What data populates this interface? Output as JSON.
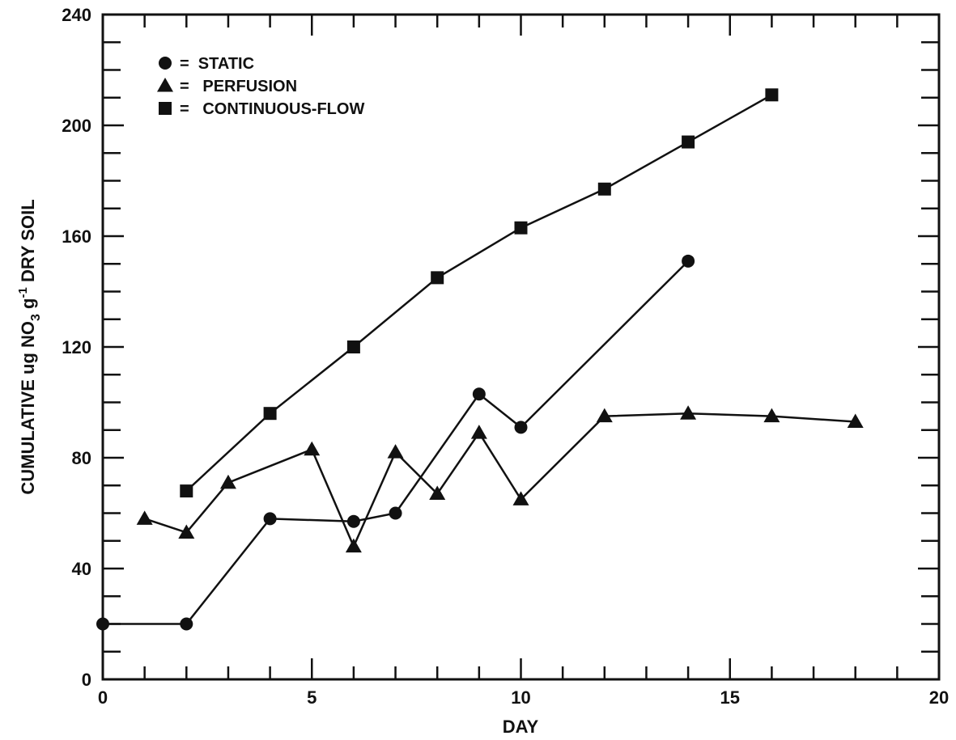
{
  "chart_data": {
    "type": "line",
    "title": "",
    "xlabel": "DAY",
    "ylabel": {
      "prefix": "CUMULATIVE ug NO",
      "sub": "3",
      "mid": " g",
      "sup": "-1",
      "suffix": " DRY SOIL"
    },
    "xlim": [
      0,
      20
    ],
    "ylim": [
      0,
      240
    ],
    "x_ticks": [
      0,
      5,
      10,
      15,
      20
    ],
    "y_ticks": [
      0,
      40,
      80,
      120,
      160,
      200,
      240
    ],
    "x_tick_labels": [
      "0",
      "5",
      "10",
      "15",
      "20"
    ],
    "y_tick_labels": [
      "0",
      "40",
      "80",
      "120",
      "160",
      "200",
      "240"
    ],
    "grid": false,
    "legend_position": "top-left",
    "series": [
      {
        "name": "STATIC",
        "marker": "circle",
        "color": "#111111",
        "x": [
          0,
          2,
          4,
          6,
          7,
          9,
          10,
          14
        ],
        "y": [
          20,
          20,
          58,
          57,
          60,
          103,
          91,
          151
        ]
      },
      {
        "name": "PERFUSION",
        "marker": "triangle",
        "color": "#111111",
        "x": [
          1,
          2,
          3,
          5,
          6,
          7,
          8,
          9,
          10,
          12,
          14,
          16,
          18
        ],
        "y": [
          58,
          53,
          71,
          83,
          48,
          82,
          67,
          89,
          65,
          95,
          96,
          95,
          93
        ]
      },
      {
        "name": "CONTINUOUS-FLOW",
        "marker": "square",
        "color": "#111111",
        "x": [
          2,
          4,
          6,
          8,
          10,
          12,
          14,
          16
        ],
        "y": [
          68,
          96,
          120,
          145,
          163,
          177,
          194,
          211
        ]
      }
    ],
    "legend": [
      {
        "symbol": "circle",
        "label": "=  STATIC"
      },
      {
        "symbol": "triangle",
        "label": "=   PERFUSION"
      },
      {
        "symbol": "square",
        "label": "=   CONTINUOUS-FLOW"
      }
    ]
  }
}
